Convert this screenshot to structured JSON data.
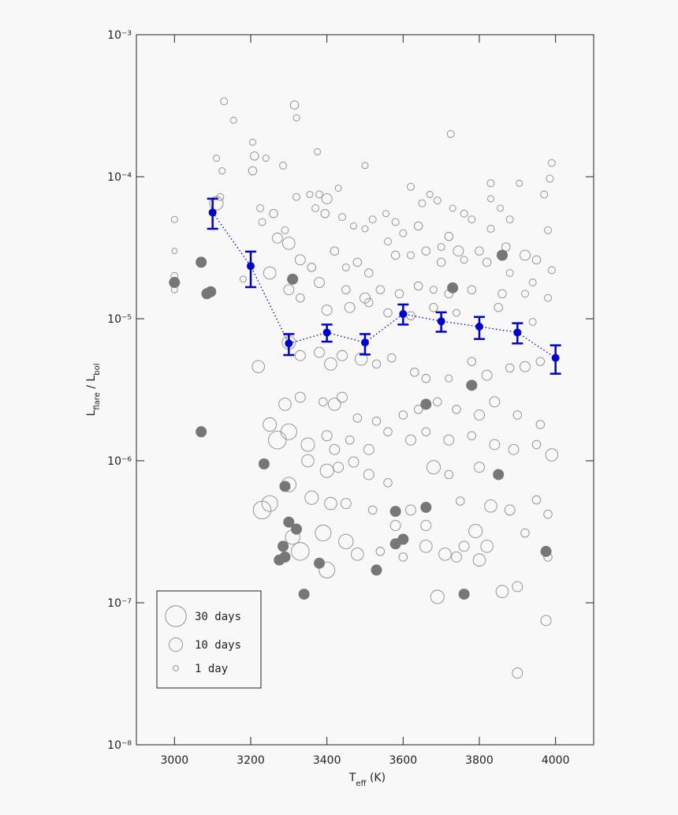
{
  "chart_data": {
    "type": "scatter",
    "x_label": "T_eff (K)",
    "y_label": "L_flare / L_bol",
    "xlim": [
      2900,
      4100
    ],
    "xticks": [
      3000,
      3200,
      3400,
      3600,
      3800,
      4000
    ],
    "ylim": [
      1e-08,
      0.001
    ],
    "log_y": true,
    "yticks": [
      {
        "value": 1e-08,
        "label": "10⁻⁸"
      },
      {
        "value": 1e-07,
        "label": "10⁻⁷"
      },
      {
        "value": 1e-06,
        "label": "10⁻⁶"
      },
      {
        "value": 1e-05,
        "label": "10⁻⁵"
      },
      {
        "value": 0.0001,
        "label": "10⁻⁴"
      },
      {
        "value": 0.001,
        "label": "10⁻³"
      }
    ],
    "legend_position": "lower left",
    "legend": [
      {
        "label": "30 days",
        "size": 30
      },
      {
        "label": "10 days",
        "size": 10
      },
      {
        "label": "1 day",
        "size": 1
      }
    ],
    "series": [
      {
        "color": "#8c8c8c",
        "fill": "none",
        "x": [
          3130,
          3155,
          3315,
          3320,
          3725,
          3110,
          3125,
          3205,
          3210,
          3205,
          3240,
          3285,
          3375,
          3500,
          3990,
          3985,
          3905,
          3000,
          3000,
          3000,
          3000,
          3120,
          3110,
          3225,
          3260,
          3230,
          3270,
          3300,
          3290,
          3320,
          3355,
          3380,
          3400,
          3370,
          3395,
          3430,
          3440,
          3470,
          3520,
          3500,
          3555,
          3580,
          3620,
          3670,
          3690,
          3650,
          3730,
          3760,
          3780,
          3830,
          3830,
          3855,
          3880,
          3970,
          3980,
          3830,
          3720,
          3640,
          3600,
          3560,
          3700,
          3660,
          3745,
          3800,
          3870,
          3920,
          3950,
          3990,
          3330,
          3360,
          3420,
          3450,
          3480,
          3510,
          3580,
          3620,
          3700,
          3760,
          3820,
          3880,
          3940,
          3180,
          3250,
          3300,
          3330,
          3380,
          3450,
          3500,
          3540,
          3590,
          3640,
          3680,
          3720,
          3780,
          3860,
          3920,
          3980,
          3400,
          3460,
          3510,
          3560,
          3620,
          3680,
          3740,
          3850,
          3940,
          3220,
          3300,
          3330,
          3380,
          3410,
          3440,
          3490,
          3530,
          3570,
          3630,
          3660,
          3720,
          3780,
          3820,
          3880,
          3920,
          3960,
          3290,
          3330,
          3390,
          3420,
          3440,
          3480,
          3530,
          3600,
          3640,
          3690,
          3740,
          3800,
          3840,
          3900,
          3960,
          3250,
          3270,
          3300,
          3350,
          3400,
          3420,
          3460,
          3510,
          3560,
          3620,
          3660,
          3720,
          3780,
          3840,
          3890,
          3950,
          3990,
          3350,
          3400,
          3430,
          3470,
          3510,
          3560,
          3680,
          3720,
          3800,
          3850,
          3300,
          3250,
          3230,
          3360,
          3410,
          3450,
          3520,
          3620,
          3660,
          3750,
          3830,
          3880,
          3950,
          3980,
          3310,
          3390,
          3450,
          3580,
          3660,
          3710,
          3760,
          3790,
          3820,
          3920,
          3330,
          3400,
          3480,
          3540,
          3600,
          3740,
          3800,
          3980,
          3690,
          3860,
          3900,
          3975,
          3900
        ],
        "values": [
          0.00034,
          0.00025,
          0.00032,
          0.00026,
          0.0002,
          0.000135,
          0.00011,
          0.000175,
          0.00014,
          0.00011,
          0.000135,
          0.00012,
          0.00015,
          0.00012,
          0.000125,
          9.7e-05,
          9e-05,
          5e-05,
          3e-05,
          2e-05,
          1.6e-05,
          7.2e-05,
          6.5e-05,
          6e-05,
          5.5e-05,
          4.8e-05,
          3.7e-05,
          3.4e-05,
          4.2e-05,
          7.2e-05,
          7.5e-05,
          7.5e-05,
          7e-05,
          6e-05,
          5.5e-05,
          8.3e-05,
          5.2e-05,
          4.5e-05,
          5e-05,
          4.3e-05,
          5.5e-05,
          4.8e-05,
          8.5e-05,
          7.5e-05,
          6.8e-05,
          6.5e-05,
          6e-05,
          5.5e-05,
          5e-05,
          9e-05,
          7e-05,
          6e-05,
          5e-05,
          7.5e-05,
          4.2e-05,
          4.3e-05,
          3.8e-05,
          4.5e-05,
          4e-05,
          3.5e-05,
          3.2e-05,
          3e-05,
          3e-05,
          3e-05,
          3.2e-05,
          2.8e-05,
          2.6e-05,
          2.2e-05,
          2.6e-05,
          2.3e-05,
          3e-05,
          2.3e-05,
          2.5e-05,
          2.1e-05,
          2.8e-05,
          2.8e-05,
          2.5e-05,
          2.6e-05,
          2.5e-05,
          2.1e-05,
          1.8e-05,
          1.9e-05,
          2.1e-05,
          1.6e-05,
          1.4e-05,
          1.8e-05,
          1.6e-05,
          1.4e-05,
          1.6e-05,
          1.5e-05,
          1.7e-05,
          1.6e-05,
          1.5e-05,
          1.6e-05,
          1.5e-05,
          1.5e-05,
          1.4e-05,
          1.15e-05,
          1.2e-05,
          1.3e-05,
          1.1e-05,
          1.05e-05,
          1.2e-05,
          1.1e-05,
          1.2e-05,
          9.5e-06,
          4.6e-06,
          6.8e-06,
          5.5e-06,
          5.8e-06,
          4.8e-06,
          5.5e-06,
          5.2e-06,
          4.8e-06,
          5.3e-06,
          4.2e-06,
          3.8e-06,
          3.8e-06,
          5e-06,
          4e-06,
          4.5e-06,
          4.6e-06,
          5e-06,
          2.5e-06,
          2.8e-06,
          2.6e-06,
          2.5e-06,
          2.8e-06,
          2e-06,
          1.9e-06,
          2.1e-06,
          2.3e-06,
          2.6e-06,
          2.3e-06,
          2.1e-06,
          2.6e-06,
          2.1e-06,
          1.8e-06,
          1.8e-06,
          1.4e-06,
          1.6e-06,
          1.3e-06,
          1.5e-06,
          1.2e-06,
          1.4e-06,
          1.2e-06,
          1.6e-06,
          1.4e-06,
          1.6e-06,
          1.4e-06,
          1.5e-06,
          1.3e-06,
          1.2e-06,
          1.3e-06,
          1.1e-06,
          1e-06,
          8.5e-07,
          9e-07,
          9.8e-07,
          8e-07,
          7e-07,
          9e-07,
          8e-07,
          9e-07,
          8e-07,
          6.8e-07,
          5e-07,
          4.5e-07,
          5.5e-07,
          5e-07,
          5e-07,
          4.5e-07,
          4.5e-07,
          3.5e-07,
          5.2e-07,
          4.8e-07,
          4.5e-07,
          5.3e-07,
          4.2e-07,
          2.9e-07,
          3.1e-07,
          2.7e-07,
          3.5e-07,
          2.5e-07,
          2.2e-07,
          2.5e-07,
          3.2e-07,
          2.5e-07,
          3.1e-07,
          2.3e-07,
          1.7e-07,
          2.2e-07,
          2.3e-07,
          2.1e-07,
          2.1e-07,
          2e-07,
          2.1e-07,
          1.1e-07,
          1.2e-07,
          1.3e-07,
          7.5e-08,
          3.2e-08
        ],
        "sizes": [
          2,
          1.5,
          3,
          1.5,
          2,
          1.5,
          1.5,
          1.5,
          3,
          3,
          1.5,
          2,
          1.5,
          1.5,
          2,
          2,
          1.5,
          1.5,
          1,
          2,
          1.5,
          2,
          10,
          2,
          3,
          2,
          5,
          8,
          2,
          2,
          1.5,
          2,
          5,
          2,
          3,
          1.5,
          2,
          1.5,
          2,
          1.5,
          1.5,
          2,
          2,
          1.5,
          2,
          2,
          1.5,
          2,
          2,
          2,
          1.5,
          1.5,
          2,
          2,
          2,
          2,
          3,
          3,
          2,
          2,
          2,
          3,
          5,
          3,
          3,
          5,
          3,
          2,
          5,
          3,
          3,
          2,
          3,
          3,
          3,
          2,
          3,
          2,
          3,
          2,
          2,
          1.5,
          8,
          5,
          3,
          5,
          3,
          5,
          3,
          3,
          3,
          2,
          3,
          3,
          3,
          2,
          2,
          5,
          5,
          3,
          3,
          3,
          3,
          2,
          3,
          2,
          8,
          10,
          5,
          5,
          8,
          5,
          8,
          3,
          3,
          3,
          3,
          2,
          3,
          5,
          3,
          5,
          3,
          8,
          5,
          3,
          8,
          5,
          3,
          3,
          3,
          3,
          3,
          3,
          5,
          5,
          3,
          3,
          10,
          20,
          15,
          10,
          5,
          5,
          3,
          5,
          3,
          5,
          3,
          5,
          3,
          5,
          5,
          3,
          8,
          8,
          10,
          5,
          5,
          5,
          3,
          10,
          3,
          5,
          3,
          12,
          15,
          20,
          10,
          8,
          5,
          3,
          5,
          5,
          3,
          8,
          5,
          3,
          3,
          12,
          15,
          12,
          5,
          8,
          8,
          5,
          10,
          8,
          3,
          20,
          15,
          8,
          3,
          3,
          5,
          8,
          3,
          10,
          8,
          5,
          5,
          5
        ]
      },
      {
        "color": "#777777",
        "fill": "#777777",
        "x": [
          3000,
          3070,
          3085,
          3095,
          3310,
          3730,
          3860,
          3070,
          3235,
          3290,
          3300,
          3320,
          3285,
          3275,
          3290,
          3380,
          3340,
          3530,
          3580,
          3580,
          3600,
          3660,
          3660,
          3780,
          3850,
          3760,
          3975
        ],
        "values": [
          1.8e-05,
          2.5e-05,
          1.5e-05,
          1.55e-05,
          1.9e-05,
          1.65e-05,
          2.8e-05,
          1.6e-06,
          9.5e-07,
          6.6e-07,
          3.7e-07,
          3.3e-07,
          2.5e-07,
          2e-07,
          2.1e-07,
          1.9e-07,
          1.15e-07,
          1.7e-07,
          4.4e-07,
          2.6e-07,
          2.8e-07,
          4.7e-07,
          2.5e-06,
          3.4e-06,
          8e-07,
          1.15e-07,
          2.3e-07
        ]
      },
      {
        "color": "#0000cc",
        "fill": "#0000cc",
        "line": "dotted",
        "x": [
          3100,
          3200,
          3300,
          3400,
          3500,
          3600,
          3700,
          3800,
          3900,
          4000
        ],
        "values": [
          5.6e-05,
          2.35e-05,
          6.7e-06,
          8e-06,
          6.8e-06,
          1.08e-05,
          9.6e-06,
          8.8e-06,
          8e-06,
          5.3e-06
        ],
        "low": [
          4.3e-05,
          1.67e-05,
          5.55e-06,
          6.9e-06,
          5.6e-06,
          9.1e-06,
          8.1e-06,
          7.2e-06,
          6.7e-06,
          4.1e-06
        ],
        "high": [
          7e-05,
          2.97e-05,
          7.8e-06,
          9.1e-06,
          7.8e-06,
          1.26e-05,
          1.11e-05,
          1.03e-05,
          9.3e-06,
          6.5e-06
        ]
      }
    ]
  }
}
